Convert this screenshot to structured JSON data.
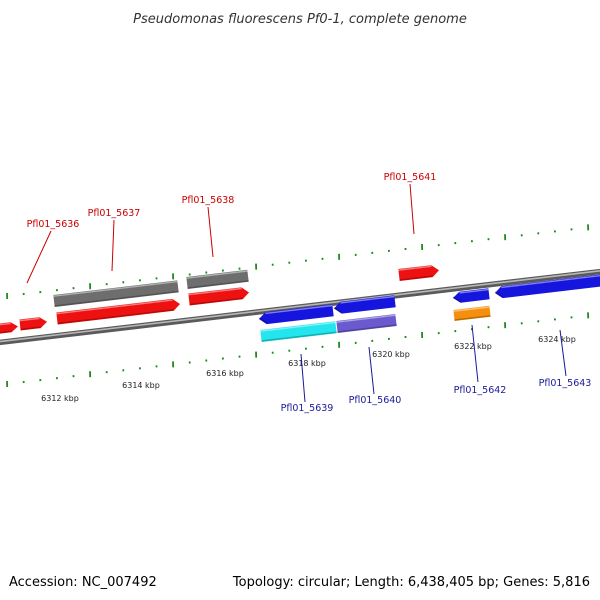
{
  "title": "Pseudomonas fluorescens Pf0-1, complete genome",
  "footer": {
    "accession": "Accession: NC_007492",
    "summary": "Topology: circular; Length: 6,438,405 bp; Genes: 5,816"
  },
  "colors": {
    "backbone": "#8c8c8c",
    "tick": "#1e8a1e",
    "label_forward": "#cc0000",
    "label_reverse": "#1a1a99",
    "red": "#ee1111",
    "gray": "#6e6e6e",
    "blue": "#1515dd",
    "cyan": "#22e5ee",
    "slate": "#6a5acd",
    "orange": "#f5900f"
  },
  "axis": {
    "unit": "kbp",
    "tick_labels": [
      "6312 kbp",
      "6314 kbp",
      "6316 kbp",
      "6318 kbp",
      "6320 kbp",
      "6322 kbp",
      "6324 kbp"
    ]
  },
  "gene_labels": [
    {
      "text": "Pfl01_5636",
      "strand": "forward"
    },
    {
      "text": "Pfl01_5637",
      "strand": "forward"
    },
    {
      "text": "Pfl01_5638",
      "strand": "forward"
    },
    {
      "text": "Pfl01_5641",
      "strand": "forward"
    },
    {
      "text": "Pfl01_5639",
      "strand": "reverse"
    },
    {
      "text": "Pfl01_5640",
      "strand": "reverse"
    },
    {
      "text": "Pfl01_5642",
      "strand": "reverse"
    },
    {
      "text": "Pfl01_5643",
      "strand": "reverse"
    }
  ]
}
